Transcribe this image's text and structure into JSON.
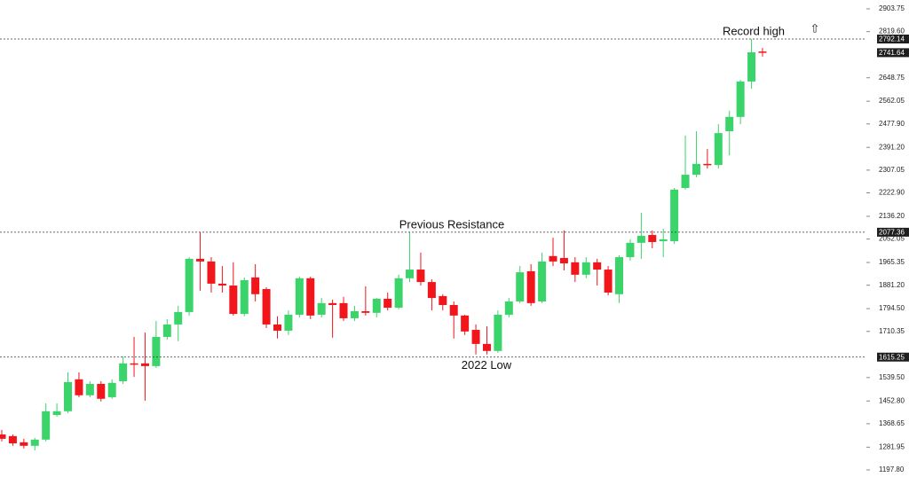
{
  "chart_data": {
    "type": "candlestick",
    "open": [
      1329,
      1323,
      1300,
      1287,
      1310,
      1401,
      1415,
      1533,
      1474,
      1516,
      1467,
      1526,
      1592,
      1592,
      1582,
      1690,
      1736,
      1782,
      1979,
      1969,
      1887,
      1880,
      1775,
      1910,
      1867,
      1736,
      1713,
      1772,
      1907,
      1772,
      1815,
      1815,
      1759,
      1785,
      1779,
      1831,
      1798,
      1907,
      1939,
      1893,
      1841,
      1808,
      1769,
      1716,
      1664,
      1638,
      1772,
      1821,
      1933,
      1821,
      1989,
      1982,
      1966,
      1920,
      1966,
      1939,
      1848,
      1985,
      2038,
      2067,
      2044,
      2044,
      2241,
      2290,
      2330,
      2326,
      2451,
      2504,
      2635,
      2746
    ],
    "high": [
      1346,
      1329,
      1313,
      1316,
      1444,
      1444,
      1559,
      1559,
      1526,
      1526,
      1533,
      1618,
      1690,
      1706,
      1749,
      1756,
      1805,
      1985,
      2077,
      1985,
      1952,
      1966,
      1910,
      1959,
      1874,
      1766,
      1788,
      1913,
      1913,
      1834,
      1828,
      1838,
      1805,
      1877,
      1834,
      1854,
      1920,
      2077,
      2002,
      1903,
      1848,
      1821,
      1772,
      1736,
      1729,
      1788,
      1834,
      1952,
      1959,
      2002,
      2057,
      2084,
      1985,
      1985,
      1979,
      1952,
      1992,
      2051,
      2149,
      2084,
      2090,
      2241,
      2435,
      2451,
      2385,
      2477,
      2527,
      2641,
      2792,
      2759
    ],
    "low": [
      1303,
      1287,
      1277,
      1270,
      1303,
      1395,
      1408,
      1467,
      1467,
      1451,
      1461,
      1516,
      1542,
      1454,
      1575,
      1680,
      1674,
      1769,
      1861,
      1854,
      1854,
      1769,
      1766,
      1821,
      1723,
      1684,
      1697,
      1762,
      1756,
      1762,
      1687,
      1749,
      1749,
      1769,
      1762,
      1788,
      1792,
      1893,
      1880,
      1788,
      1788,
      1684,
      1697,
      1625,
      1625,
      1631,
      1762,
      1815,
      1805,
      1815,
      1952,
      1936,
      1893,
      1907,
      1880,
      1844,
      1815,
      1972,
      1979,
      2018,
      1985,
      2034,
      2235,
      2281,
      2313,
      2313,
      2362,
      2477,
      2608,
      2727
    ],
    "close": [
      1313,
      1296,
      1287,
      1310,
      1415,
      1415,
      1523,
      1474,
      1516,
      1461,
      1520,
      1592,
      1588,
      1582,
      1690,
      1736,
      1782,
      1979,
      1969,
      1887,
      1880,
      1775,
      1900,
      1848,
      1736,
      1713,
      1772,
      1907,
      1769,
      1815,
      1808,
      1759,
      1785,
      1779,
      1831,
      1798,
      1907,
      1939,
      1893,
      1834,
      1808,
      1769,
      1710,
      1664,
      1638,
      1772,
      1821,
      1929,
      1815,
      1969,
      1969,
      1962,
      1920,
      1966,
      1939,
      1854,
      1985,
      2038,
      2064,
      2041,
      2051,
      2235,
      2290,
      2330,
      2326,
      2444,
      2504,
      2635,
      2743,
      2741.64
    ],
    "up_color": "#3ad46b",
    "down_color": "#f0161b",
    "ylim": [
      1142,
      2936.5
    ],
    "yticks": [
      2903.75,
      {
        "value": 2819.6,
        "label": "2819.60"
      },
      2648.75,
      2562.05,
      {
        "value": 2477.9,
        "label": "2477.90"
      },
      {
        "value": 2391.2,
        "label": "2391.20"
      },
      2307.05,
      {
        "value": 2222.9,
        "label": "2222.90"
      },
      {
        "value": 2136.2,
        "label": "2136.20"
      },
      2052.05,
      1965.35,
      {
        "value": 1881.2,
        "label": "1881.20"
      },
      {
        "value": 1794.5,
        "label": "1794.50"
      },
      1710.35,
      {
        "value": 1539.5,
        "label": "1539.50"
      },
      {
        "value": 1452.8,
        "label": "1452.80"
      },
      1368.65,
      1281.95,
      {
        "value": 1197.8,
        "label": "1197.80"
      }
    ],
    "levels": [
      {
        "value": 2792.14,
        "text": "Record high"
      },
      {
        "value": 2077.36,
        "text": "Previous Resistance"
      },
      {
        "value": 1615.25,
        "text": "2022 Low"
      }
    ],
    "last_price": 2741.64
  }
}
